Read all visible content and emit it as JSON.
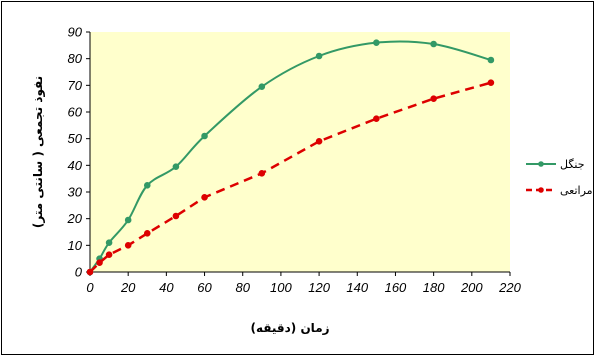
{
  "chart_data": {
    "type": "line",
    "xlabel": "زمان (دقیقه)",
    "ylabel": "نفوذ تجمعی ( سانتی متر)",
    "xlim": [
      0,
      220
    ],
    "ylim": [
      0,
      90
    ],
    "xticks": [
      0,
      20,
      40,
      60,
      80,
      100,
      120,
      140,
      160,
      180,
      200,
      220
    ],
    "yticks": [
      0,
      10,
      20,
      30,
      40,
      50,
      60,
      70,
      80,
      90
    ],
    "grid": false,
    "plot_background": "#ffffcc",
    "legend_position": "right",
    "series": [
      {
        "name": "جنگل",
        "color": "#339966",
        "style": "solid",
        "smooth": true,
        "x": [
          0,
          5,
          10,
          20,
          30,
          45,
          60,
          90,
          120,
          150,
          180,
          210
        ],
        "y": [
          0,
          5,
          11,
          19.5,
          32.5,
          39.5,
          51,
          69.5,
          81,
          86,
          85.5,
          79.5
        ]
      },
      {
        "name": "مراتعی",
        "color": "#dd0000",
        "style": "dashed",
        "smooth": false,
        "x": [
          0,
          5,
          10,
          20,
          30,
          45,
          60,
          90,
          120,
          150,
          180,
          210
        ],
        "y": [
          0,
          3.5,
          6.5,
          10,
          14.5,
          21,
          28,
          37,
          49,
          57.5,
          65,
          71
        ]
      }
    ]
  }
}
